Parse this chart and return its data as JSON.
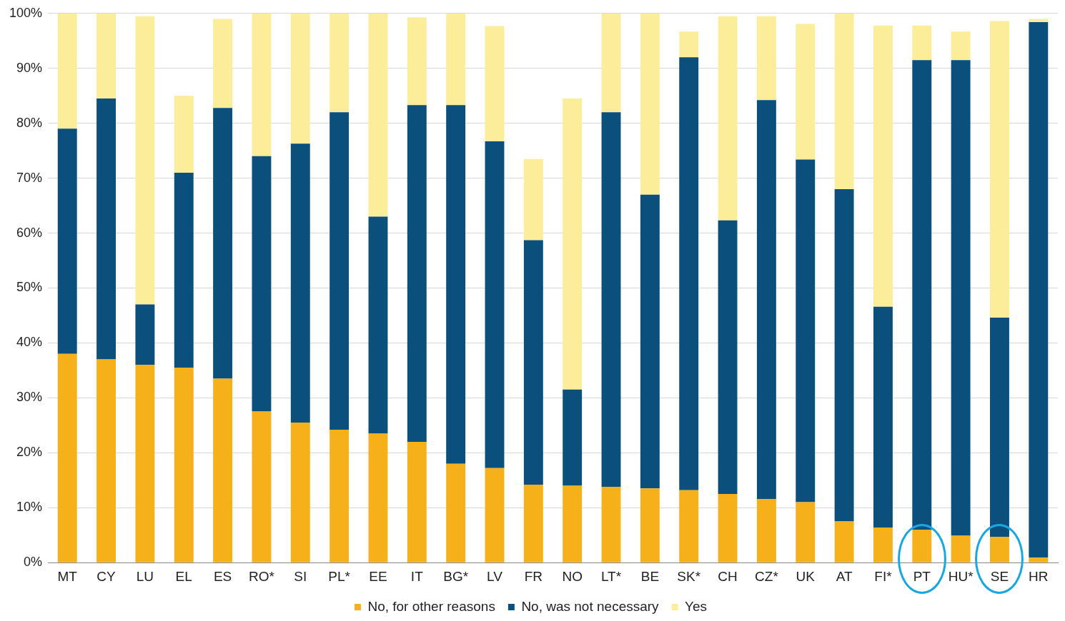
{
  "chart_data": {
    "type": "bar",
    "stacked": true,
    "categories": [
      "MT",
      "CY",
      "LU",
      "EL",
      "ES",
      "RO*",
      "SI",
      "PL*",
      "EE",
      "IT",
      "BG*",
      "LV",
      "FR",
      "NO",
      "LT*",
      "BE",
      "SK*",
      "CH",
      "CZ*",
      "UK",
      "AT",
      "FI*",
      "PT",
      "HU*",
      "SE",
      "HR"
    ],
    "series": [
      {
        "name": "No, for other reasons",
        "color": "#f5b01a",
        "values": [
          38,
          37,
          36,
          35.5,
          33.5,
          27.5,
          25.5,
          24.2,
          23.5,
          22,
          18,
          17.2,
          14.2,
          14,
          13.8,
          13.5,
          13.2,
          12.5,
          11.6,
          11,
          7.5,
          6.4,
          6,
          4.9,
          4.7,
          0.9
        ]
      },
      {
        "name": "No, was not necessary",
        "color": "#0b4f7c",
        "values": [
          41,
          47.5,
          11,
          35.5,
          49.3,
          46.5,
          50.8,
          57.8,
          39.5,
          61.3,
          65.3,
          59.5,
          44.5,
          17.5,
          68.2,
          53.5,
          78.8,
          49.8,
          72.6,
          62.4,
          60.5,
          40.2,
          85.5,
          86.6,
          39.9,
          97.5
        ]
      },
      {
        "name": "Yes",
        "color": "#fbed9a",
        "values": [
          21,
          15.5,
          52.5,
          14,
          16.2,
          26,
          23.7,
          18,
          37,
          16,
          16.7,
          21,
          14.8,
          53,
          18,
          33,
          4.7,
          37.2,
          15.3,
          24.7,
          32,
          51.2,
          6.3,
          5.2,
          54,
          0.6
        ]
      }
    ],
    "ylim": [
      0,
      100
    ],
    "yticks": [
      {
        "value": 0,
        "label": "0%"
      },
      {
        "value": 10,
        "label": "10%"
      },
      {
        "value": 20,
        "label": "20%"
      },
      {
        "value": 30,
        "label": "30%"
      },
      {
        "value": 40,
        "label": "40%"
      },
      {
        "value": 50,
        "label": "50%"
      },
      {
        "value": 60,
        "label": "60%"
      },
      {
        "value": 70,
        "label": "70%"
      },
      {
        "value": 80,
        "label": "80%"
      },
      {
        "value": 90,
        "label": "90%"
      },
      {
        "value": 100,
        "label": "100%"
      }
    ],
    "grid": "y",
    "legend": "bottom"
  }
}
